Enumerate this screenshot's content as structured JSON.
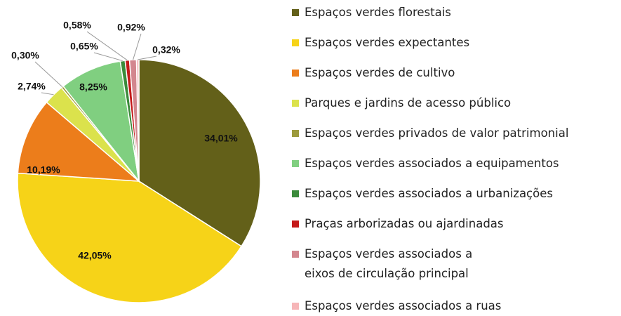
{
  "chart_data": {
    "type": "pie",
    "categories": [
      "Espaços verdes florestais",
      "Espaços verdes expectantes",
      "Espaços verdes de cultivo",
      "Parques e jardins de acesso público",
      "Espaços verdes privados  de valor patrimonial",
      "Espaços verdes associados a equipamentos",
      "Espaços verdes associados a urbanizações",
      "Praças arborizadas ou ajardinadas",
      "Espaços verdes associados a\neixos de circulação principal",
      "Espaços verdes associados a ruas"
    ],
    "values": [
      34.01,
      42.05,
      10.19,
      2.74,
      0.3,
      8.25,
      0.65,
      0.58,
      0.92,
      0.32
    ],
    "value_labels": [
      "34,01%",
      "42,05%",
      "10,19%",
      "2,74%",
      "0,30%",
      "8,25%",
      "0,65%",
      "0,58%",
      "0,92%",
      "0,32%"
    ],
    "colors": [
      "#636019",
      "#f6d318",
      "#ec7d1b",
      "#dbe24c",
      "#9c9a3c",
      "#80cf80",
      "#3b8b3b",
      "#c41a1a",
      "#d3868e",
      "#f6b6b8"
    ]
  }
}
